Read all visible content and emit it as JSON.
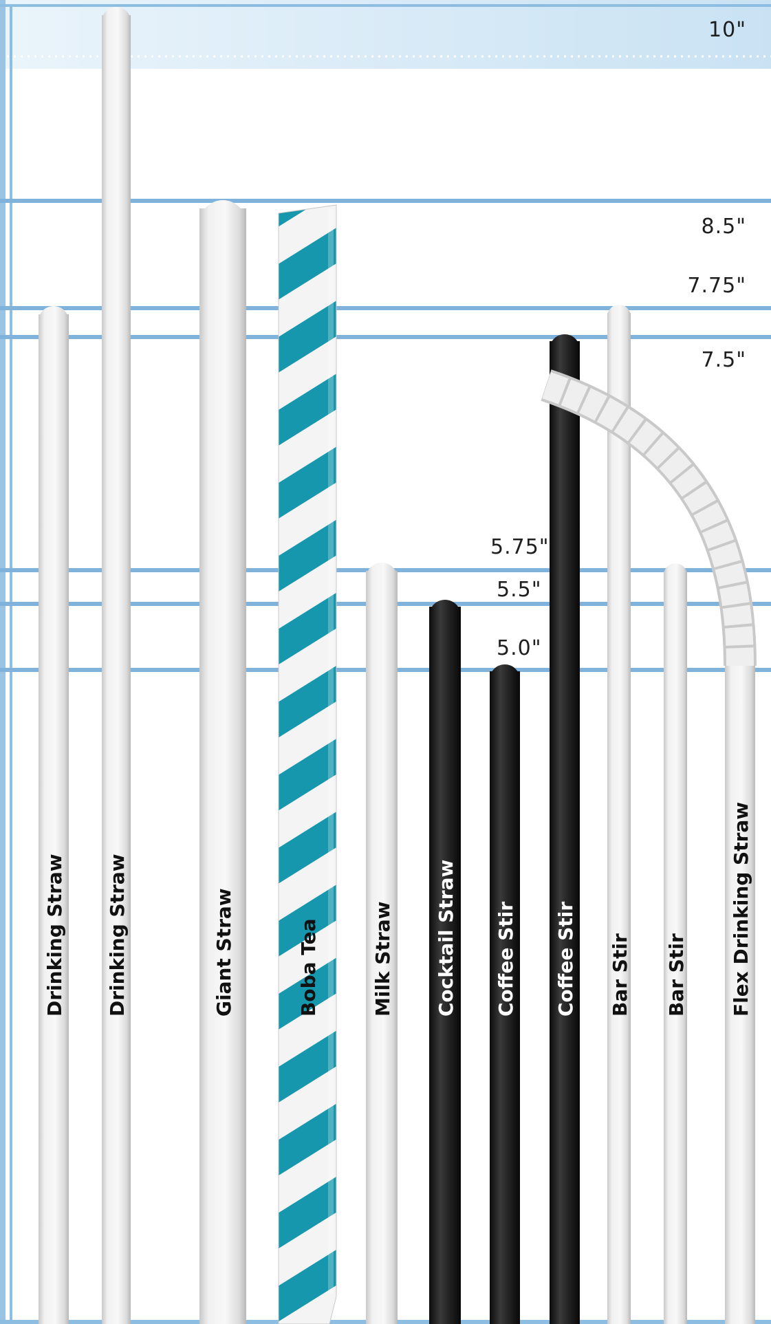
{
  "measurements": [
    {
      "key": "10",
      "label": "10\"",
      "inches": 10
    },
    {
      "key": "8_5",
      "label": "8.5\"",
      "inches": 8.5
    },
    {
      "key": "7_75",
      "label": "7.75\"",
      "inches": 7.75
    },
    {
      "key": "7_5",
      "label": "7.5\"",
      "inches": 7.5
    },
    {
      "key": "5_75",
      "label": "5.75\"",
      "inches": 5.75
    },
    {
      "key": "5_5",
      "label": "5.5\"",
      "inches": 5.5
    },
    {
      "key": "5_0",
      "label": "5.0\"",
      "inches": 5.0
    }
  ],
  "straws": [
    {
      "name": "Drinking Straw",
      "length_in": 7.75,
      "color": "white"
    },
    {
      "name": "Drinking Straw",
      "length_in": 10,
      "color": "white"
    },
    {
      "name": "Giant Straw",
      "length_in": 8.5,
      "color": "white"
    },
    {
      "name": "Boba Tea",
      "length_in": 8.5,
      "color": "teal-stripe"
    },
    {
      "name": "Milk Straw",
      "length_in": 5.75,
      "color": "white"
    },
    {
      "name": "Cocktail Straw",
      "length_in": 5.5,
      "color": "black"
    },
    {
      "name": "Coffee Stir",
      "length_in": 5.0,
      "color": "black"
    },
    {
      "name": "Coffee Stir",
      "length_in": 7.5,
      "color": "black"
    },
    {
      "name": "Bar Stir",
      "length_in": 7.75,
      "color": "white"
    },
    {
      "name": "Bar Stir",
      "length_in": 5.75,
      "color": "white"
    },
    {
      "name": "Flex Drinking Straw",
      "length_in": 7.75,
      "color": "white-flex"
    }
  ],
  "colors": {
    "rule_blue": "#7fb3dc",
    "band_light": "#d8eaf6",
    "white_straw": "#ececec",
    "black_straw": "#1c1c1c",
    "teal_stripe": "#1397ae"
  }
}
